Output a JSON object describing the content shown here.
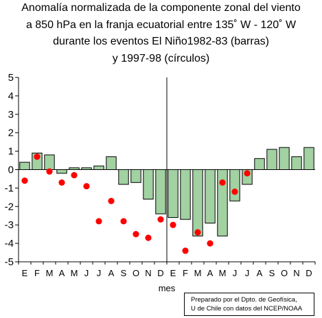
{
  "title_lines": [
    "Anomalía normalizada de la componente zonal del viento",
    "a 850 hPa en la franja ecuatorial entre 135˚ W - 120˚ W",
    "durante los eventos El Niño1982-83 (barras)",
    "y 1997-98 (círculos)"
  ],
  "credit_lines": [
    "Preparado por el Dpto. de Geofísica,",
    "U de Chile con datos del NCEP/NOAA"
  ],
  "colors": {
    "bar_fill": "#a2d1a2",
    "bar_stroke": "#000000",
    "circle_fill": "#ff0000",
    "axis": "#000000"
  },
  "chart_data": {
    "type": "bar",
    "title": "Anomalía normalizada de la componente zonal del viento a 850 hPa en la franja ecuatorial entre 135˚ W - 120˚ W durante los eventos El Niño1982-83 (barras) y 1997-98 (círculos)",
    "xlabel": "mes",
    "ylabel": "",
    "ylim": [
      -5,
      5
    ],
    "yticks": [
      5,
      4,
      3,
      2,
      1,
      0,
      -1,
      -2,
      -3,
      -4,
      -5
    ],
    "ytick_labels": [
      "5",
      "4",
      "3",
      "2",
      "1",
      "0",
      "-1",
      "-2",
      "-3",
      "-4",
      "-5"
    ],
    "categories": [
      "E",
      "F",
      "M",
      "A",
      "M",
      "J",
      "J",
      "A",
      "S",
      "O",
      "N",
      "D",
      "E",
      "F",
      "M",
      "A",
      "M",
      "J",
      "J",
      "A",
      "S",
      "O",
      "N",
      "D"
    ],
    "grid": false,
    "series": [
      {
        "name": "barras",
        "type": "bar",
        "values": [
          0.4,
          0.9,
          0.8,
          -0.2,
          0.1,
          0.1,
          0.2,
          0.7,
          -0.8,
          -0.7,
          -1.6,
          -2.4,
          -2.6,
          -2.7,
          -3.6,
          -2.9,
          -3.6,
          -1.7,
          -0.8,
          0.6,
          1.1,
          1.2,
          0.7,
          1.2
        ]
      },
      {
        "name": "círculos",
        "type": "scatter",
        "values": [
          -0.6,
          0.7,
          -0.1,
          -0.7,
          -0.3,
          -0.9,
          -2.8,
          -1.7,
          -2.8,
          -3.5,
          -3.7,
          -2.7,
          -3.0,
          -4.4,
          -3.4,
          -4.0,
          -0.7,
          -1.2,
          -0.2
        ]
      }
    ]
  }
}
